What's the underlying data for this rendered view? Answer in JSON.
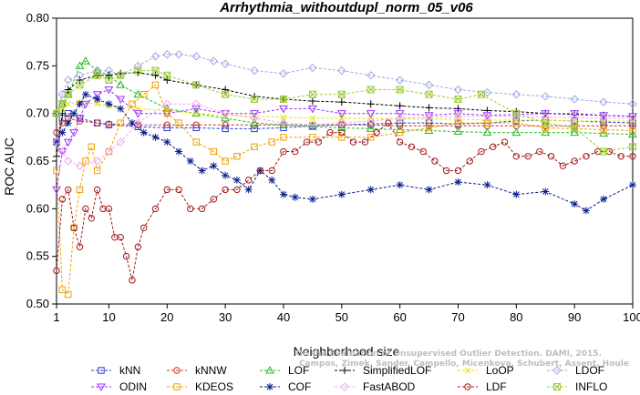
{
  "chart_data": {
    "type": "line",
    "title": "Arrhythmia_withoutdupl_norm_05_v06",
    "xlabel": "Neighborhood size",
    "ylabel": "ROC AUC",
    "xlim": [
      1,
      100
    ],
    "ylim": [
      0.5,
      0.8
    ],
    "xticks": [
      1,
      10,
      20,
      30,
      40,
      50,
      60,
      70,
      80,
      90,
      100
    ],
    "yticks": [
      0.5,
      0.55,
      0.6,
      0.65,
      0.7,
      0.75,
      0.8
    ],
    "ytick_labels": [
      "0.50",
      "0.55",
      "0.60",
      "0.65",
      "0.70",
      "0.75",
      "0.80"
    ],
    "legend_position": "bottom",
    "credit": [
      "Campos, Zimek, Sander, Campello, Micenkova, Schubert, Assent, Houle",
      "On the Evaluation of Unsupervised Outlier Detection. DAMI, 2015."
    ],
    "series": [
      {
        "name": "kNN",
        "color": "#1f3fd0",
        "marker": "square",
        "x": [
          1,
          2,
          3,
          5,
          8,
          10,
          15,
          20,
          25,
          30,
          35,
          40,
          45,
          50,
          55,
          60,
          65,
          70,
          75,
          80,
          85,
          90,
          95,
          100
        ],
        "y": [
          0.67,
          0.695,
          0.7,
          0.695,
          0.69,
          0.688,
          0.686,
          0.685,
          0.685,
          0.684,
          0.684,
          0.685,
          0.687,
          0.688,
          0.689,
          0.69,
          0.69,
          0.689,
          0.69,
          0.692,
          0.693,
          0.692,
          0.691,
          0.69
        ]
      },
      {
        "name": "kNNW",
        "color": "#c8322c",
        "marker": "circle",
        "x": [
          1,
          2,
          3,
          5,
          8,
          10,
          15,
          20,
          25,
          30,
          35,
          40,
          45,
          50,
          55,
          60,
          65,
          70,
          75,
          80,
          85,
          90,
          95,
          100
        ],
        "y": [
          0.68,
          0.69,
          0.695,
          0.692,
          0.69,
          0.689,
          0.688,
          0.688,
          0.688,
          0.688,
          0.688,
          0.688,
          0.688,
          0.688,
          0.688,
          0.687,
          0.687,
          0.687,
          0.687,
          0.687,
          0.687,
          0.687,
          0.687,
          0.687
        ]
      },
      {
        "name": "LOF",
        "color": "#22bb22",
        "marker": "triangle-up",
        "x": [
          1,
          2,
          3,
          5,
          6,
          8,
          10,
          12,
          15,
          20,
          25,
          30,
          35,
          40,
          45,
          50,
          55,
          60,
          65,
          70,
          75,
          80,
          85,
          90,
          95,
          100
        ],
        "y": [
          0.7,
          0.71,
          0.72,
          0.75,
          0.755,
          0.745,
          0.74,
          0.73,
          0.72,
          0.705,
          0.7,
          0.695,
          0.69,
          0.688,
          0.686,
          0.685,
          0.684,
          0.683,
          0.682,
          0.681,
          0.68,
          0.68,
          0.68,
          0.68,
          0.679,
          0.678
        ]
      },
      {
        "name": "SimplifiedLOF",
        "color": "#000000",
        "marker": "plus",
        "x": [
          1,
          2,
          3,
          5,
          8,
          10,
          12,
          15,
          18,
          20,
          25,
          30,
          35,
          40,
          45,
          50,
          55,
          60,
          65,
          70,
          75,
          80,
          85,
          90,
          95,
          100
        ],
        "y": [
          0.655,
          0.7,
          0.725,
          0.735,
          0.74,
          0.74,
          0.742,
          0.743,
          0.74,
          0.735,
          0.73,
          0.725,
          0.718,
          0.715,
          0.713,
          0.712,
          0.71,
          0.708,
          0.706,
          0.705,
          0.703,
          0.702,
          0.7,
          0.699,
          0.698,
          0.697
        ]
      },
      {
        "name": "LoOP",
        "color": "#e6e600",
        "marker": "x",
        "x": [
          1,
          2,
          3,
          5,
          8,
          10,
          15,
          20,
          25,
          30,
          35,
          40,
          45,
          50,
          55,
          60,
          65,
          70,
          75,
          80,
          85,
          90,
          95,
          100
        ],
        "y": [
          0.7,
          0.705,
          0.71,
          0.712,
          0.71,
          0.708,
          0.705,
          0.703,
          0.7,
          0.698,
          0.697,
          0.696,
          0.695,
          0.695,
          0.695,
          0.694,
          0.694,
          0.694,
          0.693,
          0.693,
          0.693,
          0.692,
          0.692,
          0.692
        ]
      },
      {
        "name": "LDOF",
        "color": "#a5a5e6",
        "marker": "diamond",
        "x": [
          1,
          2,
          3,
          5,
          8,
          10,
          12,
          15,
          18,
          20,
          22,
          25,
          28,
          30,
          35,
          40,
          45,
          50,
          55,
          60,
          65,
          70,
          75,
          80,
          85,
          90,
          95,
          100
        ],
        "y": [
          0.7,
          0.72,
          0.735,
          0.74,
          0.745,
          0.745,
          0.74,
          0.75,
          0.76,
          0.762,
          0.762,
          0.76,
          0.755,
          0.752,
          0.745,
          0.742,
          0.748,
          0.745,
          0.74,
          0.735,
          0.73,
          0.725,
          0.722,
          0.72,
          0.718,
          0.715,
          0.712,
          0.71
        ]
      },
      {
        "name": "ODIN",
        "color": "#9933ff",
        "marker": "triangle-down",
        "x": [
          1,
          2,
          3,
          4,
          5,
          6,
          8,
          10,
          12,
          15,
          20,
          25,
          30,
          35,
          40,
          45,
          50,
          55,
          60,
          65,
          70,
          75,
          80,
          85,
          90,
          95,
          100
        ],
        "y": [
          0.62,
          0.66,
          0.67,
          0.68,
          0.695,
          0.71,
          0.72,
          0.725,
          0.715,
          0.7,
          0.7,
          0.705,
          0.7,
          0.7,
          0.705,
          0.705,
          0.7,
          0.7,
          0.7,
          0.698,
          0.7,
          0.698,
          0.699,
          0.7,
          0.7,
          0.698,
          0.697
        ]
      },
      {
        "name": "KDEOS",
        "color": "#f0a000",
        "marker": "square",
        "x": [
          1,
          2,
          3,
          4,
          5,
          6,
          7,
          8,
          10,
          12,
          14,
          16,
          18,
          20,
          22,
          25,
          28,
          30,
          32,
          35,
          38,
          40,
          45,
          50,
          55,
          60,
          65,
          70,
          75,
          80,
          85,
          90,
          95,
          100
        ],
        "y": [
          0.64,
          0.515,
          0.51,
          0.58,
          0.62,
          0.65,
          0.665,
          0.64,
          0.66,
          0.69,
          0.71,
          0.72,
          0.73,
          0.7,
          0.69,
          0.67,
          0.66,
          0.65,
          0.655,
          0.665,
          0.67,
          0.675,
          0.675,
          0.675,
          0.675,
          0.68,
          0.685,
          0.69,
          0.69,
          0.69,
          0.685,
          0.684,
          0.683,
          0.682
        ]
      },
      {
        "name": "COF",
        "color": "#0a1f8c",
        "marker": "star",
        "x": [
          1,
          2,
          3,
          4,
          5,
          6,
          8,
          10,
          12,
          14,
          16,
          18,
          20,
          22,
          24,
          26,
          28,
          30,
          32,
          34,
          36,
          38,
          40,
          42,
          45,
          50,
          55,
          60,
          65,
          70,
          75,
          80,
          85,
          90,
          92,
          95,
          100
        ],
        "y": [
          0.67,
          0.68,
          0.69,
          0.7,
          0.71,
          0.72,
          0.715,
          0.71,
          0.705,
          0.69,
          0.68,
          0.675,
          0.67,
          0.66,
          0.65,
          0.64,
          0.645,
          0.635,
          0.63,
          0.62,
          0.64,
          0.63,
          0.615,
          0.612,
          0.61,
          0.615,
          0.62,
          0.625,
          0.62,
          0.628,
          0.625,
          0.615,
          0.618,
          0.605,
          0.598,
          0.61,
          0.625
        ]
      },
      {
        "name": "FastABOD",
        "color": "#f4a6f4",
        "marker": "diamond",
        "x": [
          1,
          2,
          3,
          5,
          8,
          10,
          12,
          15,
          20,
          25,
          30,
          35,
          40,
          45,
          50,
          55,
          60,
          65,
          70,
          75,
          80,
          85,
          90,
          95,
          100
        ],
        "y": [
          0.67,
          0.66,
          0.65,
          0.645,
          0.65,
          0.66,
          0.67,
          0.69,
          0.71,
          0.71,
          0.7,
          0.695,
          0.69,
          0.688,
          0.69,
          0.692,
          0.695,
          0.696,
          0.697,
          0.697,
          0.697,
          0.696,
          0.696,
          0.695,
          0.695
        ]
      },
      {
        "name": "LDF",
        "color": "#a01818",
        "marker": "circle",
        "x": [
          1,
          2,
          3,
          4,
          5,
          6,
          7,
          8,
          9,
          10,
          11,
          12,
          13,
          14,
          15,
          16,
          18,
          20,
          22,
          24,
          26,
          28,
          30,
          32,
          34,
          36,
          38,
          40,
          42,
          44,
          46,
          48,
          50,
          52,
          54,
          56,
          58,
          60,
          62,
          64,
          66,
          68,
          70,
          72,
          74,
          76,
          78,
          80,
          82,
          84,
          86,
          88,
          90,
          92,
          94,
          96,
          98,
          100
        ],
        "y": [
          0.535,
          0.61,
          0.62,
          0.58,
          0.56,
          0.6,
          0.59,
          0.62,
          0.6,
          0.6,
          0.57,
          0.57,
          0.55,
          0.525,
          0.56,
          0.58,
          0.6,
          0.62,
          0.62,
          0.6,
          0.6,
          0.61,
          0.62,
          0.62,
          0.63,
          0.64,
          0.64,
          0.66,
          0.66,
          0.67,
          0.67,
          0.68,
          0.68,
          0.67,
          0.67,
          0.68,
          0.69,
          0.67,
          0.665,
          0.66,
          0.65,
          0.64,
          0.64,
          0.65,
          0.66,
          0.665,
          0.67,
          0.655,
          0.655,
          0.66,
          0.655,
          0.645,
          0.65,
          0.655,
          0.66,
          0.66,
          0.655,
          0.655
        ]
      },
      {
        "name": "INFLO",
        "color": "#9bcc33",
        "marker": "box-x",
        "x": [
          1,
          2,
          3,
          5,
          8,
          10,
          12,
          15,
          18,
          20,
          25,
          30,
          35,
          40,
          45,
          50,
          55,
          60,
          65,
          70,
          74,
          80,
          85,
          90,
          95,
          100
        ],
        "y": [
          0.7,
          0.71,
          0.72,
          0.73,
          0.74,
          0.735,
          0.74,
          0.745,
          0.745,
          0.74,
          0.73,
          0.72,
          0.715,
          0.715,
          0.72,
          0.72,
          0.725,
          0.725,
          0.72,
          0.715,
          0.72,
          0.7,
          0.69,
          0.685,
          0.66,
          0.665
        ]
      }
    ]
  }
}
